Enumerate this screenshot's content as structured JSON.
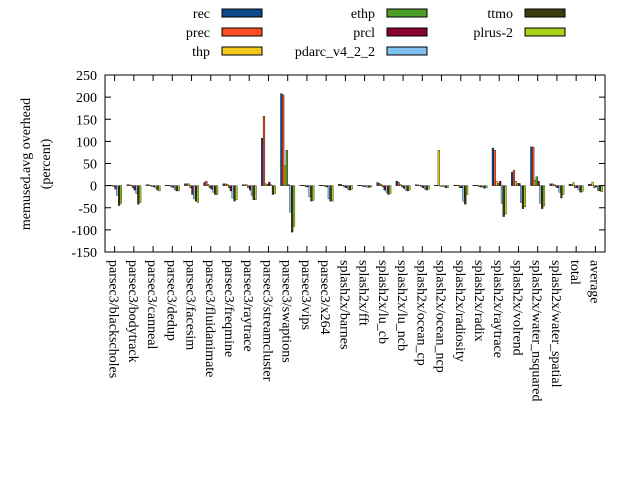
{
  "chart_data": {
    "type": "bar",
    "ylabel_lines": [
      "memused.avg overhead",
      "(percent)"
    ],
    "xlabel": "",
    "ylim": [
      -150,
      250
    ],
    "yticks": [
      -150,
      -100,
      -50,
      0,
      50,
      100,
      150,
      200,
      250
    ],
    "grid": false,
    "legend_position": "top",
    "categories": [
      "parsec3/blackscholes",
      "parsec3/bodytrack",
      "parsec3/canneal",
      "parsec3/dedup",
      "parsec3/facesim",
      "parsec3/fluidanimate",
      "parsec3/freqmine",
      "parsec3/raytrace",
      "parsec3/streamcluster",
      "parsec3/swaptions",
      "parsec3/vips",
      "parsec3/x264",
      "splash2x/barnes",
      "splash2x/fft",
      "splash2x/lu_cb",
      "splash2x/lu_ncb",
      "splash2x/ocean_cp",
      "splash2x/ocean_ncp",
      "splash2x/radiosity",
      "splash2x/radix",
      "splash2x/raytrace",
      "splash2x/volrend",
      "splash2x/water_nsquared",
      "splash2x/water_spatial",
      "total",
      "average"
    ],
    "series": [
      {
        "name": "rec",
        "color": "#0d4a8c",
        "values": [
          1,
          2,
          2,
          1,
          4,
          7,
          4,
          2,
          107,
          208,
          1,
          1,
          3,
          1,
          7,
          10,
          2,
          1,
          1,
          1,
          85,
          30,
          88,
          4,
          3,
          3
        ]
      },
      {
        "name": "prec",
        "color": "#ff4e26",
        "values": [
          1,
          2,
          2,
          1,
          4,
          10,
          4,
          2,
          157,
          205,
          1,
          1,
          3,
          1,
          5,
          8,
          2,
          1,
          1,
          1,
          80,
          35,
          87,
          4,
          3,
          3
        ]
      },
      {
        "name": "thp",
        "color": "#f2c81a",
        "values": [
          1,
          1,
          1,
          1,
          4,
          3,
          3,
          2,
          4,
          45,
          1,
          1,
          1,
          1,
          3,
          3,
          1,
          80,
          1,
          1,
          10,
          10,
          12,
          2,
          7,
          8
        ]
      },
      {
        "name": "ethp",
        "color": "#4e9e2a",
        "values": [
          -2,
          -5,
          -2,
          -3,
          -5,
          -5,
          -5,
          -5,
          3,
          80,
          -3,
          -2,
          -3,
          -3,
          -3,
          -3,
          -2,
          -1,
          -5,
          -2,
          5,
          5,
          20,
          -3,
          -5,
          -5
        ]
      },
      {
        "name": "prcl",
        "color": "#8b0033",
        "values": [
          -8,
          -10,
          -3,
          -4,
          -20,
          -8,
          -12,
          -10,
          8,
          2,
          -3,
          -3,
          -5,
          -2,
          -10,
          -6,
          -5,
          -1,
          -5,
          -3,
          10,
          5,
          10,
          -5,
          -5,
          -3
        ]
      },
      {
        "name": "pdarc_v4_2_2",
        "color": "#7fc2f2",
        "values": [
          -22,
          -18,
          -6,
          -9,
          -30,
          -15,
          -28,
          -22,
          2,
          -60,
          -25,
          -30,
          -8,
          -4,
          -15,
          -10,
          -8,
          -3,
          -35,
          -4,
          -40,
          -38,
          -40,
          -15,
          -10,
          -11
        ]
      },
      {
        "name": "ttmo",
        "color": "#3c3c0e",
        "values": [
          -45,
          -42,
          -10,
          -12,
          -35,
          -20,
          -35,
          -32,
          -20,
          -105,
          -35,
          -35,
          -10,
          -4,
          -20,
          -12,
          -10,
          -5,
          -42,
          -6,
          -70,
          -52,
          -52,
          -28,
          -15,
          -12
        ]
      },
      {
        "name": "plrus-2",
        "color": "#a8d21e",
        "values": [
          -40,
          -38,
          -12,
          -12,
          -38,
          -20,
          -32,
          -32,
          -18,
          -92,
          -33,
          -35,
          -8,
          -3,
          -18,
          -10,
          -8,
          -4,
          -20,
          -5,
          -64,
          -48,
          -46,
          -20,
          -13,
          -14
        ]
      }
    ]
  }
}
